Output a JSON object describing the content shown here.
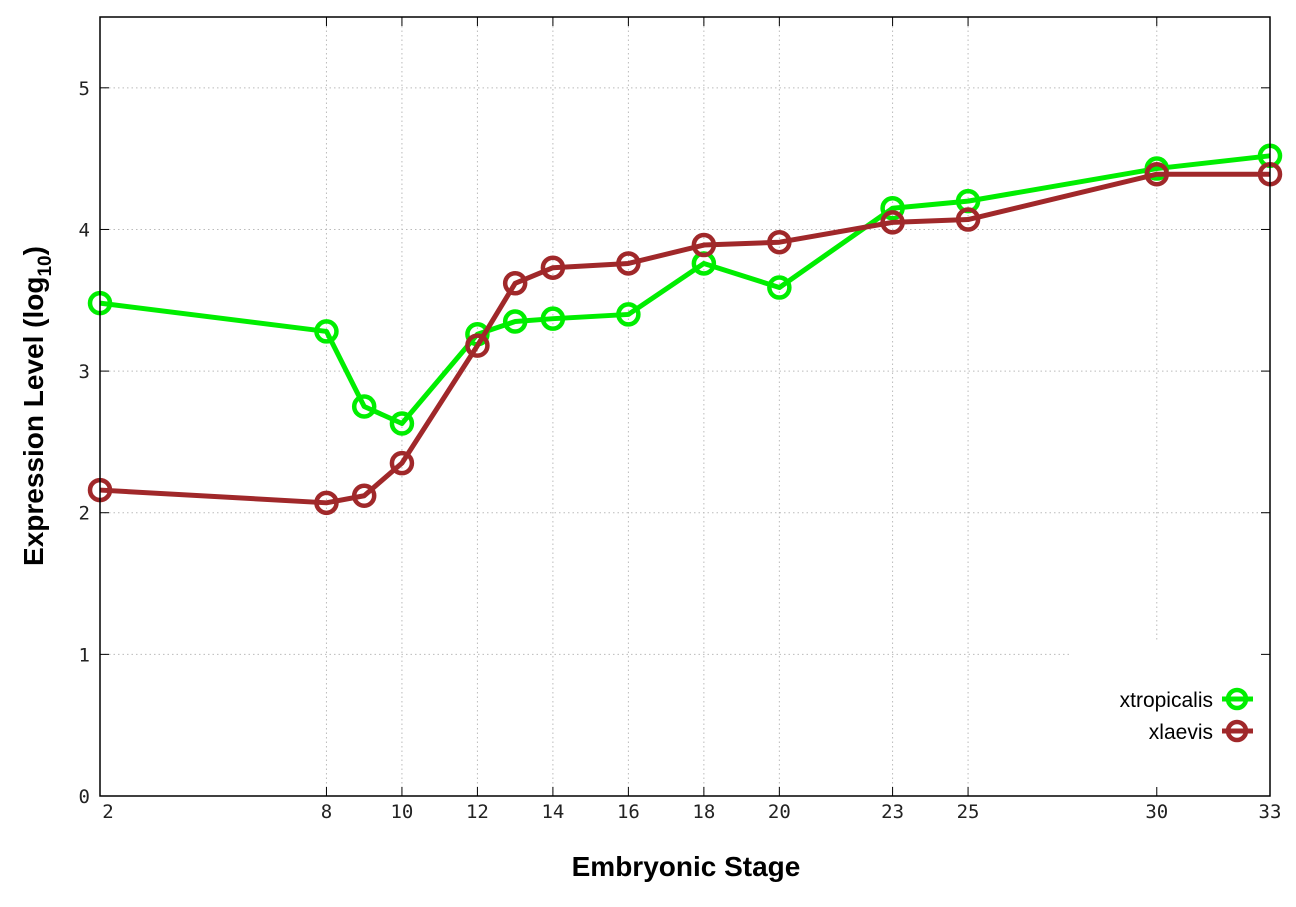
{
  "chart_data": {
    "type": "line",
    "title": "",
    "xlabel": "Embryonic Stage",
    "ylabel": "Expression Level (log",
    "ylabel_subscript": "10",
    "ylabel_close": ")",
    "xlim": [
      2,
      33
    ],
    "ylim": [
      0,
      5.5
    ],
    "x_ticks": [
      2,
      8,
      10,
      12,
      14,
      16,
      18,
      20,
      23,
      25,
      30,
      33
    ],
    "y_ticks": [
      0,
      1,
      2,
      3,
      4,
      5
    ],
    "grid": true,
    "legend_position": "bottom-right",
    "x": [
      2,
      8,
      9,
      10,
      12,
      13,
      14,
      16,
      18,
      20,
      23,
      25,
      30,
      33
    ],
    "series": [
      {
        "name": "xtropicalis",
        "color": "#00ee00",
        "values": [
          3.48,
          3.28,
          2.75,
          2.63,
          3.26,
          3.35,
          3.37,
          3.4,
          3.76,
          3.59,
          4.15,
          4.2,
          4.43,
          4.52
        ]
      },
      {
        "name": "xlaevis",
        "color": "#a0282a",
        "values": [
          2.16,
          2.07,
          2.12,
          2.35,
          3.18,
          3.62,
          3.73,
          3.76,
          3.89,
          3.91,
          4.05,
          4.07,
          4.39,
          4.39
        ]
      }
    ]
  }
}
